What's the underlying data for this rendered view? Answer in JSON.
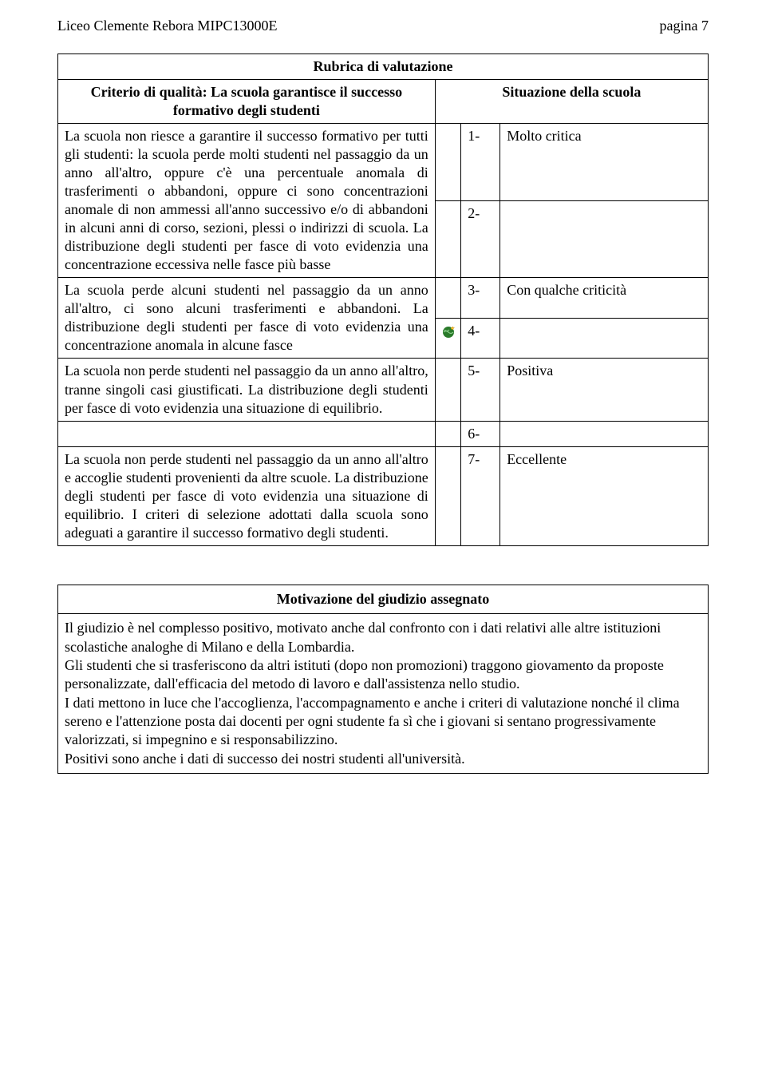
{
  "header": {
    "left": "Liceo Clemente Rebora MIPC13000E",
    "right": "pagina 7"
  },
  "rubric": {
    "title": "Rubrica di valutazione",
    "criterion": "Criterio di qualità: La scuola garantisce il successo formativo degli studenti",
    "situation": "Situazione della scuola",
    "rows": [
      {
        "desc": "La scuola non riesce a garantire il successo formativo per tutti gli studenti: la scuola perde molti studenti nel passaggio da un anno all'altro, oppure c'è una percentuale anomala di trasferimenti o abbandoni, oppure ci sono concentrazioni anomale di non ammessi all'anno successivo e/o di abbandoni in alcuni anni di corso, sezioni, plessi o indirizzi di scuola. La distribuzione degli studenti per fasce di voto evidenzia una concentrazione eccessiva nelle fasce più basse",
        "num": "1-",
        "label": "Molto critica",
        "marker": false
      },
      {
        "desc": "",
        "num": "2-",
        "label": "",
        "marker": false
      },
      {
        "desc": "La scuola perde alcuni studenti nel passaggio da un anno all'altro, ci sono alcuni trasferimenti e abbandoni. La distribuzione degli studenti per fasce di voto evidenzia una concentrazione anomala in alcune fasce",
        "num": "3-",
        "label": "Con qualche criticità",
        "marker": false
      },
      {
        "desc": "",
        "num": "4-",
        "label": "",
        "marker": true
      },
      {
        "desc": "La scuola non perde studenti nel passaggio da un anno all'altro, tranne singoli casi giustificati. La distribuzione degli studenti per fasce di voto evidenzia una situazione di equilibrio.",
        "num": "5-",
        "label": "Positiva",
        "marker": false
      },
      {
        "desc": "",
        "num": "6-",
        "label": "",
        "marker": false
      },
      {
        "desc": "La scuola non perde studenti nel passaggio da un anno all'altro e accoglie studenti provenienti da altre scuole. La distribuzione degli studenti per fasce di voto evidenzia una situazione di equilibrio. I criteri di selezione adottati dalla scuola sono adeguati a garantire il successo formativo degli studenti.",
        "num": "7-",
        "label": "Eccellente",
        "marker": false
      }
    ]
  },
  "motivation": {
    "title": "Motivazione del giudizio assegnato",
    "body": "Il giudizio è nel complesso positivo, motivato anche dal confronto con i dati relativi alle altre istituzioni scolastiche analoghe di Milano e della Lombardia.\nGli studenti che si trasferiscono da altri istituti (dopo non promozioni) traggono giovamento da proposte personalizzate, dall'efficacia del metodo di lavoro e dall'assistenza nello studio.\nI dati mettono in luce che l'accoglienza, l'accompagnamento e anche i criteri di valutazione   nonché  il clima sereno e l'attenzione posta dai docenti per ogni studente fa sì che i giovani si sentano progressivamente valorizzati, si impegnino e si responsabilizzino.\nPositivi sono anche i dati di successo dei nostri studenti all'università."
  },
  "style": {
    "marker_color": "#2a7a2a",
    "marker_accent": "#ffcc33"
  }
}
